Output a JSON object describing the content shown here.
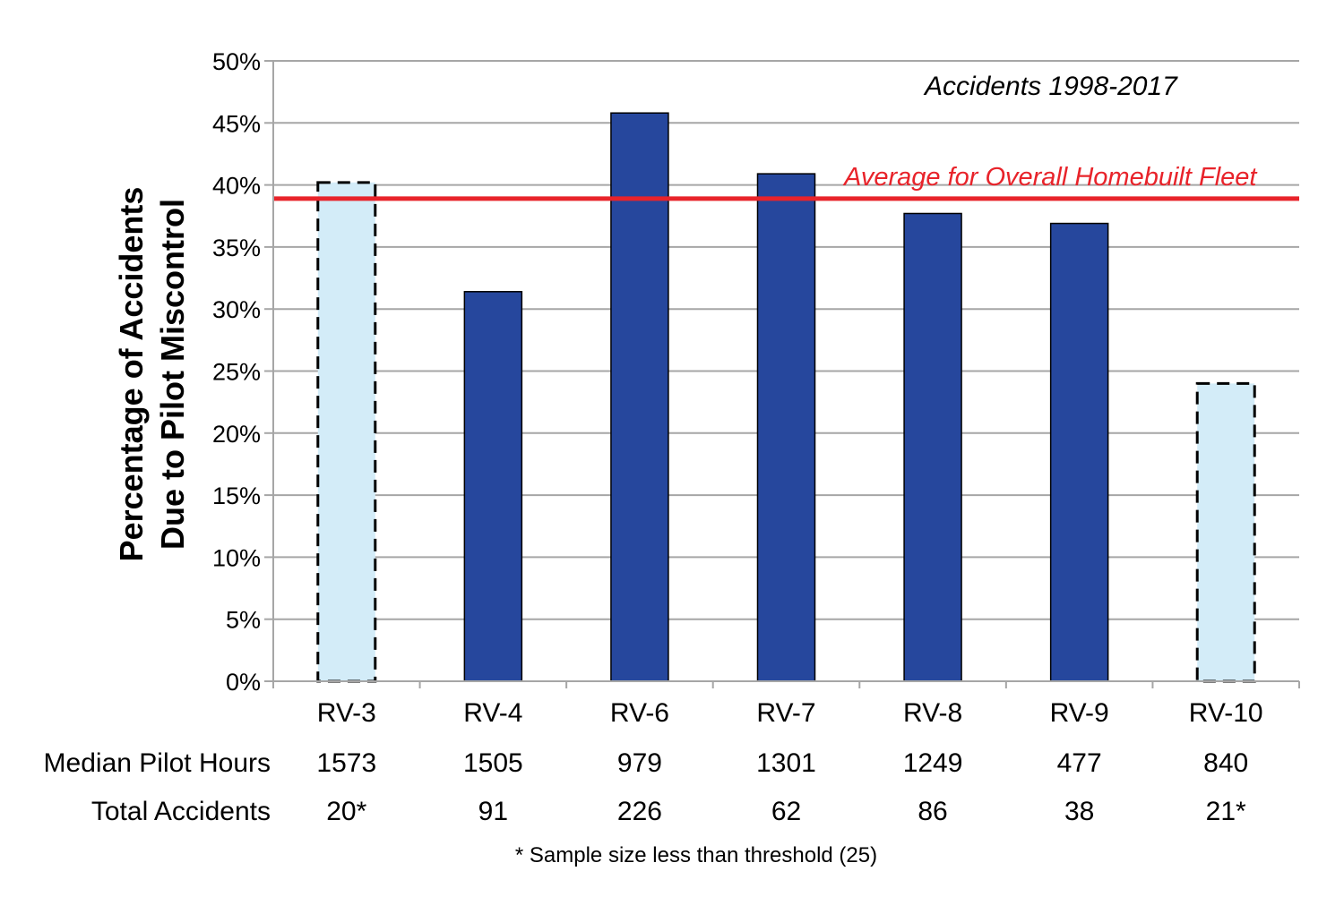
{
  "chart_data": {
    "type": "bar",
    "title": "",
    "subtitle": "Accidents 1998-2017",
    "ylabel": [
      "Percentage of  Accidents",
      "Due to Pilot Miscontrol"
    ],
    "xlabel": "",
    "ylim": [
      0,
      50
    ],
    "yticks": [
      "0%",
      "5%",
      "10%",
      "15%",
      "20%",
      "25%",
      "30%",
      "35%",
      "40%",
      "45%",
      "50%"
    ],
    "grid": true,
    "categories": [
      "RV-3",
      "RV-4",
      "RV-6",
      "RV-7",
      "RV-8",
      "RV-9",
      "RV-10"
    ],
    "values": [
      40.2,
      31.4,
      45.8,
      40.9,
      37.7,
      36.9,
      24.0
    ],
    "below_threshold": [
      true,
      false,
      false,
      false,
      false,
      false,
      true
    ],
    "reference_line": {
      "label": "Average for Overall Homebuilt Fleet",
      "value": 38.9
    },
    "table_rows": [
      {
        "label": "Median Pilot Hours",
        "values": [
          "1573",
          "1505",
          "979",
          "1301",
          "1249",
          "477",
          "840"
        ]
      },
      {
        "label": "Total Accidents",
        "values": [
          "20*",
          "91",
          "226",
          "62",
          "86",
          "38",
          "21*"
        ]
      }
    ],
    "footnote": "* Sample size less than threshold (25)"
  },
  "colors": {
    "bar_fill": "#26479d",
    "bar_fill_small_sample": "#d3ecf8",
    "reference_line": "#e8232a",
    "grid": "#a6a6a6"
  }
}
